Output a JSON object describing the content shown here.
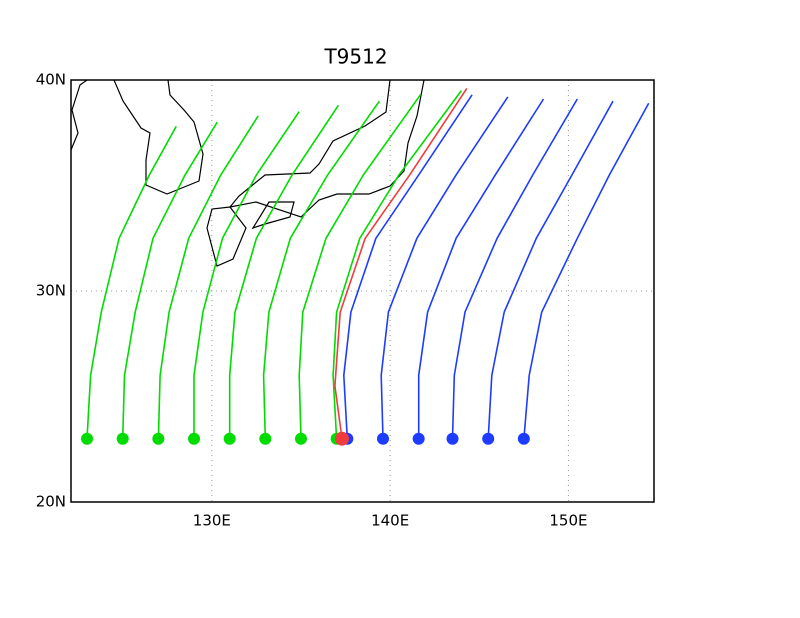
{
  "chart_data": {
    "type": "map",
    "title": "T9512",
    "xlim": [
      122.1,
      154.8
    ],
    "ylim": [
      20,
      40
    ],
    "xticks": [
      {
        "value": 130,
        "label": "130E"
      },
      {
        "value": 140,
        "label": "140E"
      },
      {
        "value": 150,
        "label": "150E"
      }
    ],
    "yticks": [
      {
        "value": 20,
        "label": "20N"
      },
      {
        "value": 30,
        "label": "30N"
      },
      {
        "value": 40,
        "label": "40N"
      }
    ],
    "grid": true,
    "series": [
      {
        "color": "#00dc00",
        "tracks": [
          {
            "x": [
              123,
              123.2,
              123.8,
              124.8,
              126.5,
              128
            ],
            "y": [
              23,
              26,
              29,
              32.5,
              35.5,
              37.8
            ]
          },
          {
            "x": [
              125,
              125.1,
              125.7,
              126.7,
              128.5,
              130.3
            ],
            "y": [
              23,
              26,
              29,
              32.5,
              35.5,
              38.0
            ]
          },
          {
            "x": [
              127,
              127.1,
              127.6,
              128.7,
              130.5,
              132.6
            ],
            "y": [
              23,
              26,
              29,
              32.5,
              35.5,
              38.3
            ]
          },
          {
            "x": [
              129,
              129.0,
              129.5,
              130.6,
              132.5,
              134.9
            ],
            "y": [
              23,
              26,
              29,
              32.5,
              35.5,
              38.5
            ]
          },
          {
            "x": [
              131,
              131.0,
              131.3,
              132.5,
              134.5,
              137.1
            ],
            "y": [
              23,
              26,
              29,
              32.5,
              35.5,
              38.8
            ]
          },
          {
            "x": [
              133,
              132.9,
              133.2,
              134.4,
              136.5,
              139.4
            ],
            "y": [
              23,
              26,
              29,
              32.5,
              35.5,
              39.0
            ]
          },
          {
            "x": [
              135,
              134.9,
              135.1,
              136.4,
              138.5,
              141.7
            ],
            "y": [
              23,
              26,
              29,
              32.5,
              35.5,
              39.3
            ]
          },
          {
            "x": [
              137,
              136.8,
              137.0,
              138.3,
              140.5,
              144
            ],
            "y": [
              23,
              26,
              29,
              32.5,
              35.5,
              39.5
            ]
          }
        ]
      },
      {
        "color": "#1e3cff",
        "tracks": [
          {
            "x": [
              137.6,
              137.4,
              137.8,
              139.2,
              141.6,
              144.6
            ],
            "y": [
              23,
              26,
              29,
              32.5,
              35.5,
              39.3
            ]
          },
          {
            "x": [
              139.6,
              139.5,
              139.9,
              141.5,
              143.7,
              146.6
            ],
            "y": [
              23,
              26,
              29,
              32.5,
              35.5,
              39.2
            ]
          },
          {
            "x": [
              141.6,
              141.6,
              142.1,
              143.7,
              145.9,
              148.6
            ],
            "y": [
              23,
              26,
              29,
              32.5,
              35.5,
              39.1
            ]
          },
          {
            "x": [
              143.5,
              143.6,
              144.2,
              146.0,
              148.0,
              150.5
            ],
            "y": [
              23,
              26,
              29,
              32.5,
              35.5,
              39.1
            ]
          },
          {
            "x": [
              145.5,
              145.7,
              146.4,
              148.2,
              150.2,
              152.5
            ],
            "y": [
              23,
              26,
              29,
              32.5,
              35.5,
              39.0
            ]
          },
          {
            "x": [
              147.5,
              147.8,
              148.5,
              150.5,
              152.3,
              154.5
            ],
            "y": [
              23,
              26,
              29,
              32.5,
              35.5,
              38.9
            ]
          }
        ]
      },
      {
        "color": "#f03c3c",
        "tracks": [
          {
            "x": [
              137.3,
              136.9,
              137.2,
              138.6,
              141.1,
              144.3
            ],
            "y": [
              23,
              25.5,
              29,
              32.5,
              35.5,
              39.6
            ]
          }
        ]
      }
    ]
  }
}
